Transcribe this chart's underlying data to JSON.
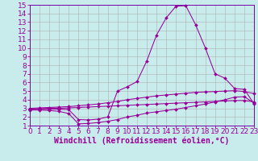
{
  "xlabel": "Windchill (Refroidissement éolien,°C)",
  "background_color": "#c8ecec",
  "grid_color": "#b0b0b0",
  "line_color": "#990099",
  "spine_color": "#7700aa",
  "xlim": [
    0,
    23
  ],
  "ylim": [
    1,
    15
  ],
  "xticks": [
    0,
    1,
    2,
    3,
    4,
    5,
    6,
    7,
    8,
    9,
    10,
    11,
    12,
    13,
    14,
    15,
    16,
    17,
    18,
    19,
    20,
    21,
    22,
    23
  ],
  "yticks": [
    1,
    2,
    3,
    4,
    5,
    6,
    7,
    8,
    9,
    10,
    11,
    12,
    13,
    14,
    15
  ],
  "line1_y": [
    2.9,
    2.95,
    3.0,
    3.0,
    3.05,
    3.1,
    3.15,
    3.2,
    3.25,
    3.3,
    3.35,
    3.4,
    3.45,
    3.5,
    3.55,
    3.6,
    3.65,
    3.7,
    3.75,
    3.8,
    3.85,
    3.9,
    3.9,
    3.75
  ],
  "line2_y": [
    3.0,
    3.05,
    3.1,
    3.15,
    3.2,
    3.3,
    3.4,
    3.5,
    3.65,
    3.8,
    4.0,
    4.15,
    4.3,
    4.45,
    4.55,
    4.65,
    4.75,
    4.85,
    4.9,
    4.95,
    5.0,
    5.05,
    4.95,
    4.7
  ],
  "line3_y": [
    2.8,
    2.8,
    2.75,
    2.65,
    2.4,
    1.2,
    1.25,
    1.35,
    1.5,
    1.7,
    2.0,
    2.2,
    2.45,
    2.6,
    2.75,
    2.9,
    3.1,
    3.3,
    3.5,
    3.75,
    4.0,
    4.3,
    4.35,
    3.6
  ],
  "line4_y": [
    2.9,
    2.9,
    2.9,
    2.9,
    2.85,
    1.7,
    1.65,
    1.75,
    2.0,
    5.0,
    5.5,
    6.1,
    8.5,
    11.5,
    13.5,
    14.85,
    14.9,
    12.7,
    10.0,
    7.0,
    6.5,
    5.3,
    5.2,
    3.5
  ],
  "tick_fontsize": 6.5,
  "xlabel_fontsize": 7,
  "marker_size": 2
}
